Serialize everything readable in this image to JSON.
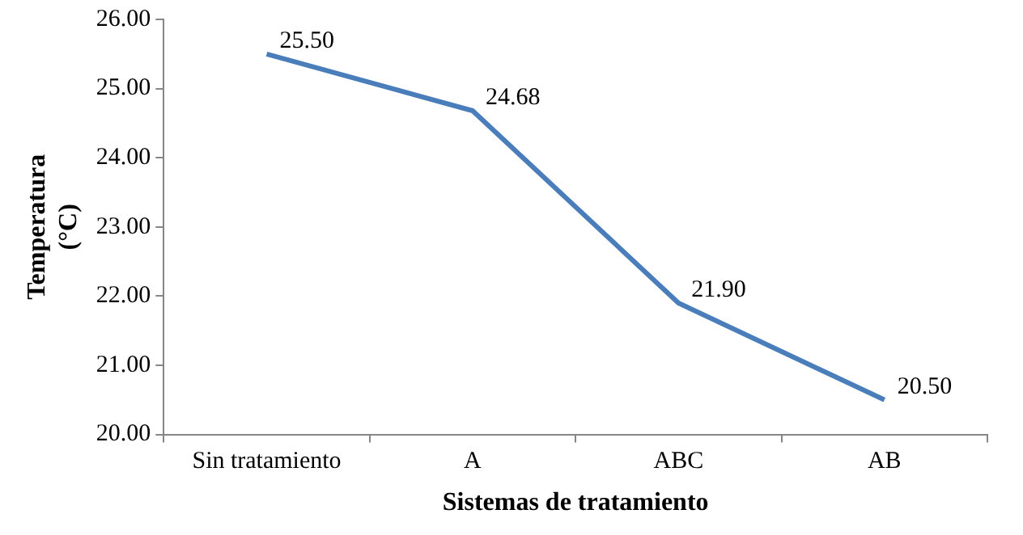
{
  "chart_data": {
    "type": "line",
    "xlabel": "Sistemas de tratamiento",
    "ylabel": "Temperatura\n(°C)",
    "categories": [
      "Sin tratamiento",
      "A",
      "ABC",
      "AB"
    ],
    "series": [
      {
        "color": "#4a7ebb",
        "values": [
          25.5,
          24.68,
          21.9,
          20.5
        ]
      }
    ],
    "ylim": [
      20,
      26
    ],
    "yticks": [
      {
        "value": 20,
        "label": "20.00"
      },
      {
        "value": 21,
        "label": "21.00"
      },
      {
        "value": 22,
        "label": "22.00"
      },
      {
        "value": 23,
        "label": "23.00"
      },
      {
        "value": 24,
        "label": "24.00"
      },
      {
        "value": 25,
        "label": "25.00"
      },
      {
        "value": 26,
        "label": "26.00"
      }
    ],
    "value_labels": [
      "25.50",
      "24.68",
      "21.90",
      "20.50"
    ],
    "grid": false,
    "legend": false,
    "marker": "none",
    "line_style": "solid"
  }
}
